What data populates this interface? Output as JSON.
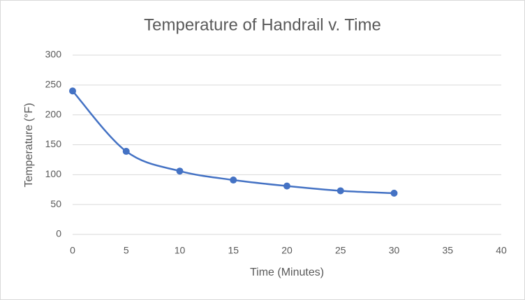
{
  "chart_data": {
    "type": "scatter-smooth",
    "title": "Temperature  of Handrail v. Time",
    "x_label": "Time (Minutes)",
    "y_label": "Temperature (°F)",
    "x": [
      0,
      5,
      10,
      15,
      20,
      25,
      30
    ],
    "series": [
      {
        "color": "#4472c4",
        "values": [
          240,
          139,
          106,
          91,
          81,
          73,
          69
        ]
      }
    ],
    "xlim": [
      0,
      40
    ],
    "xticks": [
      0,
      5,
      10,
      15,
      20,
      25,
      30,
      35,
      40
    ],
    "ylim": [
      0,
      300
    ],
    "yticks": [
      0,
      50,
      100,
      150,
      200,
      250,
      300
    ],
    "grid": true
  }
}
